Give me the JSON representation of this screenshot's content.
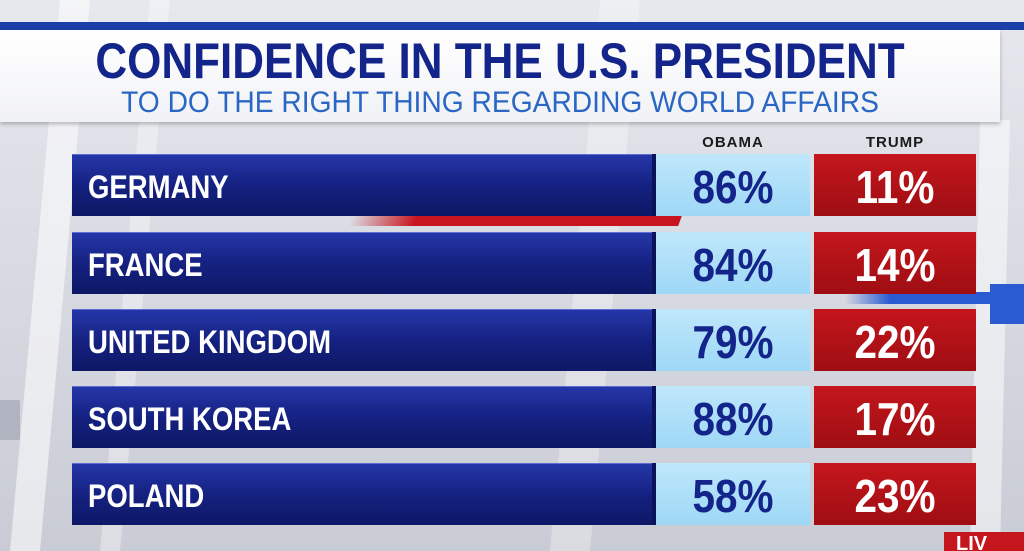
{
  "title": "CONFIDENCE IN THE U.S. PRESIDENT",
  "subtitle": "TO DO THE RIGHT THING REGARDING WORLD AFFAIRS",
  "live_badge": "LIV",
  "colors": {
    "label_blue": "#14207e",
    "obama_cell": "#9ed8f6",
    "trump_cell": "#c4161c",
    "title_text": "#13248a",
    "subtitle_text": "#2a66c4"
  },
  "chart_data": {
    "type": "table",
    "title": "CONFIDENCE IN THE U.S. PRESIDENT",
    "subtitle": "TO DO THE RIGHT THING REGARDING WORLD AFFAIRS",
    "columns": [
      "OBAMA",
      "TRUMP"
    ],
    "categories": [
      "GERMANY",
      "FRANCE",
      "UNITED KINGDOM",
      "SOUTH KOREA",
      "POLAND"
    ],
    "series": [
      {
        "name": "OBAMA",
        "values": [
          86,
          84,
          79,
          88,
          58
        ]
      },
      {
        "name": "TRUMP",
        "values": [
          11,
          14,
          22,
          17,
          23
        ]
      }
    ],
    "value_suffix": "%"
  }
}
